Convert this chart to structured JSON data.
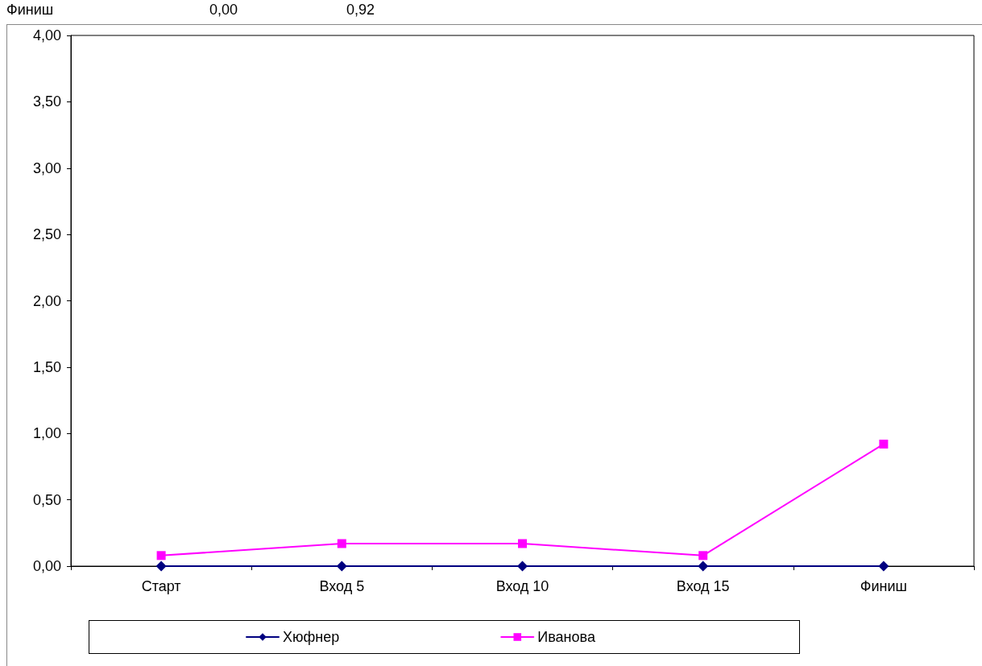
{
  "chart_data": {
    "type": "line",
    "categories": [
      "Старт",
      "Вход 5",
      "Вход 10",
      "Вход 15",
      "Финиш"
    ],
    "series": [
      {
        "name": "Хюфнер",
        "color": "#000080",
        "marker": "diamond",
        "values": [
          0,
          0,
          0,
          0,
          0
        ]
      },
      {
        "name": "Иванова",
        "color": "#ff00ff",
        "marker": "square",
        "values": [
          0.08,
          0.17,
          0.17,
          0.08,
          0.92
        ]
      }
    ],
    "ylim": [
      0,
      4
    ],
    "yticks": [
      {
        "value": 0,
        "label": "0,00"
      },
      {
        "value": 0.5,
        "label": "0,50"
      },
      {
        "value": 1,
        "label": "1,00"
      },
      {
        "value": 1.5,
        "label": "1,50"
      },
      {
        "value": 2,
        "label": "2,00"
      },
      {
        "value": 2.5,
        "label": "2,50"
      },
      {
        "value": 3,
        "label": "3,00"
      },
      {
        "value": 3.5,
        "label": "3,50"
      },
      {
        "value": 4,
        "label": "4,00"
      }
    ],
    "grid": false,
    "legend": "bottom",
    "line_style": "solid",
    "annotations": [
      "Финиш",
      "0,00",
      "0,92"
    ]
  }
}
